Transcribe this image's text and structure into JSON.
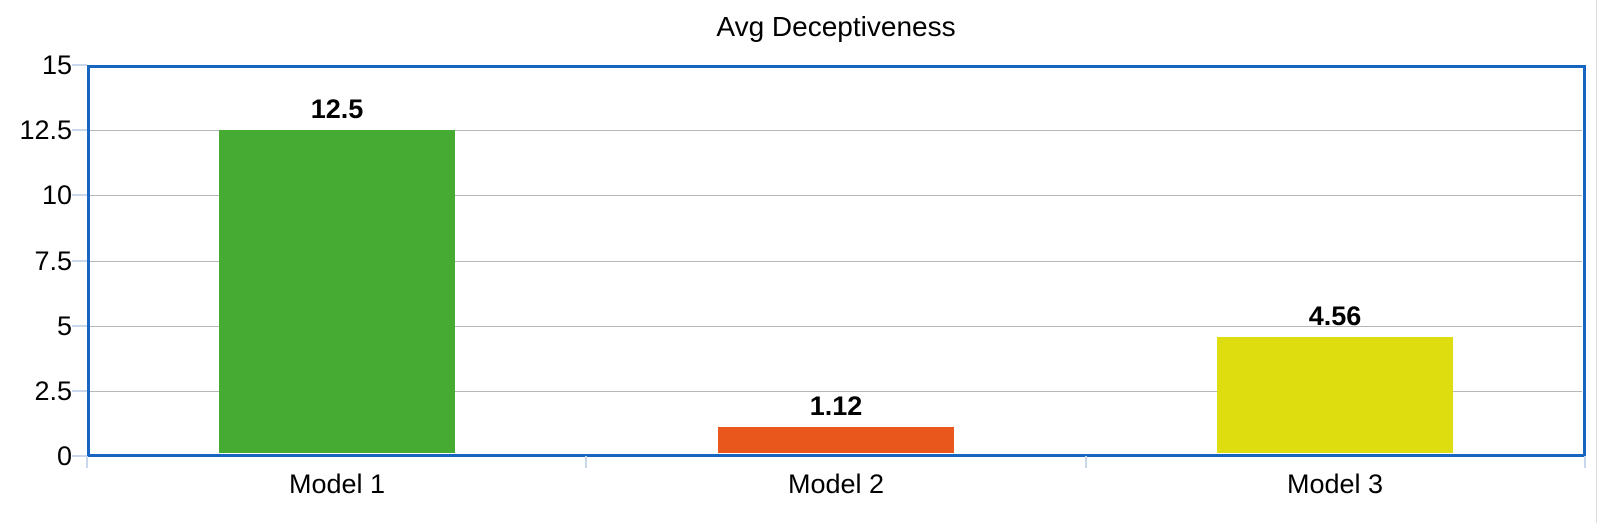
{
  "chart_data": {
    "type": "bar",
    "title": "Avg Deceptiveness",
    "categories": [
      "Model 1",
      "Model 2",
      "Model 3"
    ],
    "values": [
      12.5,
      1.12,
      4.56
    ],
    "value_labels": [
      "12.5",
      "1.12",
      "4.56"
    ],
    "series": [
      {
        "name": "Avg Deceptiveness",
        "values": [
          12.5,
          1.12,
          4.56
        ]
      }
    ],
    "bar_colors": [
      "#46ab33",
      "#e9571c",
      "#dedd0f"
    ],
    "xlabel": "",
    "ylabel": "",
    "ylim": [
      0,
      15
    ],
    "yticks": [
      0,
      2.5,
      5,
      7.5,
      10,
      12.5,
      15
    ],
    "ytick_labels": [
      "0",
      "2.5",
      "5",
      "7.5",
      "10",
      "12.5",
      "15"
    ],
    "grid": true,
    "legend": false,
    "colors": {
      "plot_border": "#1666c1",
      "gridline": "#b7b7b7",
      "tickmark": "#c9d7ec",
      "title_text": "#000000",
      "axis_text": "#000000",
      "value_label_text": "#000000",
      "background": "#ffffff"
    }
  }
}
